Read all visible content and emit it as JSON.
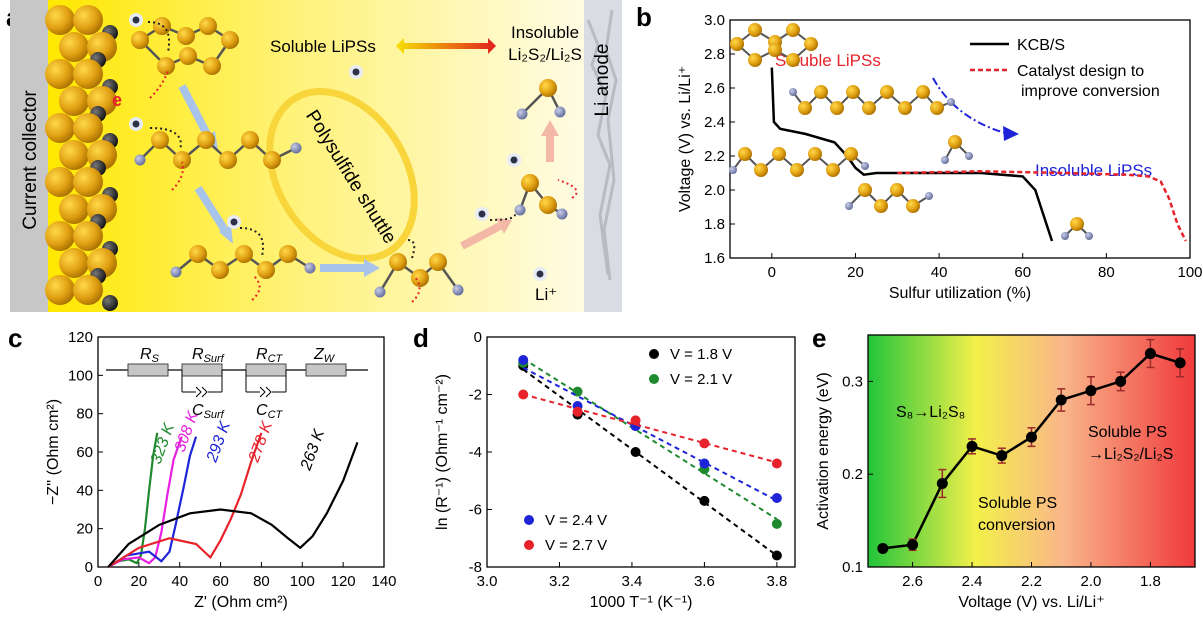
{
  "panels": {
    "a": {
      "label": "a",
      "current_collector": "Current collector",
      "li_anode": "Li anode",
      "soluble": "Soluble LiPSs",
      "insoluble_line1": "Insoluble",
      "insoluble_line2": "Li₂S₂/Li₂S",
      "shuttle": "Polysulfide shuttle",
      "electron": "e",
      "li_ion": "Li⁺"
    },
    "b": {
      "label": "b",
      "soluble_annotation": "Soluble LiPSs",
      "insoluble_annotation": "Insoluble LiPSs",
      "legend": [
        "KCB/S",
        "Catalyst design to",
        "improve conversion"
      ]
    },
    "c": {
      "label": "c",
      "circuit": [
        "R",
        "S",
        "R",
        "Surf",
        "R",
        "CT",
        "Z",
        "W",
        "C",
        "Surf",
        "C",
        "CT"
      ],
      "temperature_labels": [
        "323 K",
        "308 K",
        "293 K",
        "278 K",
        "263 K"
      ]
    },
    "d": {
      "label": "d"
    },
    "e": {
      "label": "e",
      "region1": "S₈→Li₂S₈",
      "region2_line1": "Soluble PS",
      "region2_line2": "conversion",
      "region3_line1": "Soluble PS",
      "region3_line2": "→Li₂S₂/Li₂S"
    }
  },
  "chart_data": [
    {
      "panel": "b",
      "type": "line",
      "xlabel": "Sulfur utilization (%)",
      "ylabel": "Voltage (V) vs. Li/Li⁺",
      "xlim": [
        -10,
        100
      ],
      "ylim": [
        1.6,
        3.0
      ],
      "xticks": [
        "0",
        "20",
        "40",
        "60",
        "80",
        "100"
      ],
      "yticks": [
        "1.6",
        "1.8",
        "2.0",
        "2.2",
        "2.4",
        "2.6",
        "2.8",
        "3.0"
      ],
      "series": [
        {
          "name": "KCB/S",
          "color": "#000000",
          "style": "solid",
          "x": [
            0,
            0.5,
            2,
            8,
            15,
            18,
            20,
            22,
            25,
            35,
            50,
            60,
            63,
            65,
            67
          ],
          "y": [
            2.72,
            2.4,
            2.36,
            2.33,
            2.28,
            2.2,
            2.13,
            2.09,
            2.1,
            2.1,
            2.1,
            2.08,
            2.0,
            1.85,
            1.7
          ]
        },
        {
          "name": "Catalyst design to improve conversion",
          "color": "#e8222a",
          "style": "dashed",
          "x": [
            30,
            50,
            70,
            85,
            90,
            93,
            95,
            97,
            99
          ],
          "y": [
            2.1,
            2.11,
            2.1,
            2.09,
            2.08,
            2.05,
            1.95,
            1.8,
            1.7
          ]
        }
      ]
    },
    {
      "panel": "c",
      "type": "line",
      "xlabel": "Z' (Ohm cm²)",
      "ylabel": "−Z'' (Ohm cm²)",
      "xlim": [
        0,
        140
      ],
      "ylim": [
        0,
        120
      ],
      "xticks": [
        "0",
        "20",
        "40",
        "60",
        "80",
        "100",
        "120",
        "140"
      ],
      "yticks": [
        "0",
        "20",
        "40",
        "60",
        "80",
        "100",
        "120"
      ],
      "series": [
        {
          "name": "323 K",
          "color": "#1e8a2e",
          "x": [
            5,
            10,
            15,
            19,
            21,
            23,
            25,
            27,
            29
          ],
          "y": [
            0,
            3,
            4,
            2,
            6,
            20,
            40,
            58,
            70
          ]
        },
        {
          "name": "308 K",
          "color": "#e81fe0",
          "x": [
            5,
            12,
            20,
            25,
            28,
            31,
            34,
            37,
            41
          ],
          "y": [
            0,
            4,
            5,
            2,
            5,
            18,
            38,
            56,
            68
          ]
        },
        {
          "name": "293 K",
          "color": "#1f24d8",
          "x": [
            5,
            14,
            25,
            31,
            35,
            38,
            42,
            45,
            48
          ],
          "y": [
            0,
            6,
            8,
            3,
            8,
            22,
            42,
            58,
            68
          ]
        },
        {
          "name": "278 K",
          "color": "#e8222a",
          "x": [
            5,
            20,
            35,
            48,
            55,
            60,
            65,
            70,
            75,
            80
          ],
          "y": [
            0,
            10,
            15,
            12,
            5,
            14,
            25,
            38,
            55,
            70
          ]
        },
        {
          "name": "263 K",
          "color": "#000000",
          "x": [
            5,
            15,
            30,
            45,
            60,
            75,
            85,
            93,
            99,
            105,
            112,
            120,
            127
          ],
          "y": [
            0,
            12,
            22,
            28,
            30,
            28,
            22,
            15,
            10,
            16,
            28,
            45,
            65
          ]
        }
      ]
    },
    {
      "panel": "d",
      "type": "scatter",
      "xlabel": "1000 T⁻¹ (K⁻¹)",
      "ylabel": "ln (R⁻¹) (Ohm⁻¹ cm⁻²)",
      "xlim": [
        3.0,
        3.85
      ],
      "ylim": [
        -8,
        0
      ],
      "xticks": [
        "3.0",
        "3.2",
        "3.4",
        "3.6",
        "3.8"
      ],
      "yticks": [
        "0",
        "-2",
        "-4",
        "-6",
        "-8"
      ],
      "x": [
        3.1,
        3.25,
        3.41,
        3.6,
        3.8
      ],
      "series": [
        {
          "name": "V = 1.8 V",
          "color": "#000000",
          "y": [
            -1.0,
            -2.7,
            -4.0,
            -5.7,
            -7.6
          ]
        },
        {
          "name": "V = 2.1 V",
          "color": "#1e8a2e",
          "y": [
            -0.9,
            -1.9,
            -3.1,
            -4.6,
            -6.5
          ]
        },
        {
          "name": "V = 2.4 V",
          "color": "#1f24d8",
          "y": [
            -0.8,
            -2.4,
            -3.1,
            -4.4,
            -5.6
          ]
        },
        {
          "name": "V = 2.7 V",
          "color": "#e8222a",
          "y": [
            -2.0,
            -2.6,
            -2.9,
            -3.7,
            -4.4
          ]
        }
      ]
    },
    {
      "panel": "e",
      "type": "line",
      "xlabel": "Voltage (V) vs. Li/Li⁺",
      "ylabel": "Activation energy (eV)",
      "xlim": [
        2.75,
        1.65
      ],
      "ylim": [
        0.1,
        0.35
      ],
      "xticks": [
        "2.6",
        "2.4",
        "2.2",
        "2.0",
        "1.8"
      ],
      "yticks": [
        "0.1",
        "0.2",
        "0.3"
      ],
      "x": [
        2.7,
        2.6,
        2.5,
        2.4,
        2.3,
        2.2,
        2.1,
        2.0,
        1.9,
        1.8,
        1.7
      ],
      "y": [
        0.12,
        0.124,
        0.19,
        0.23,
        0.22,
        0.24,
        0.28,
        0.29,
        0.3,
        0.33,
        0.32
      ],
      "err": [
        0.003,
        0.006,
        0.015,
        0.008,
        0.008,
        0.01,
        0.012,
        0.015,
        0.01,
        0.015,
        0.015
      ]
    }
  ]
}
